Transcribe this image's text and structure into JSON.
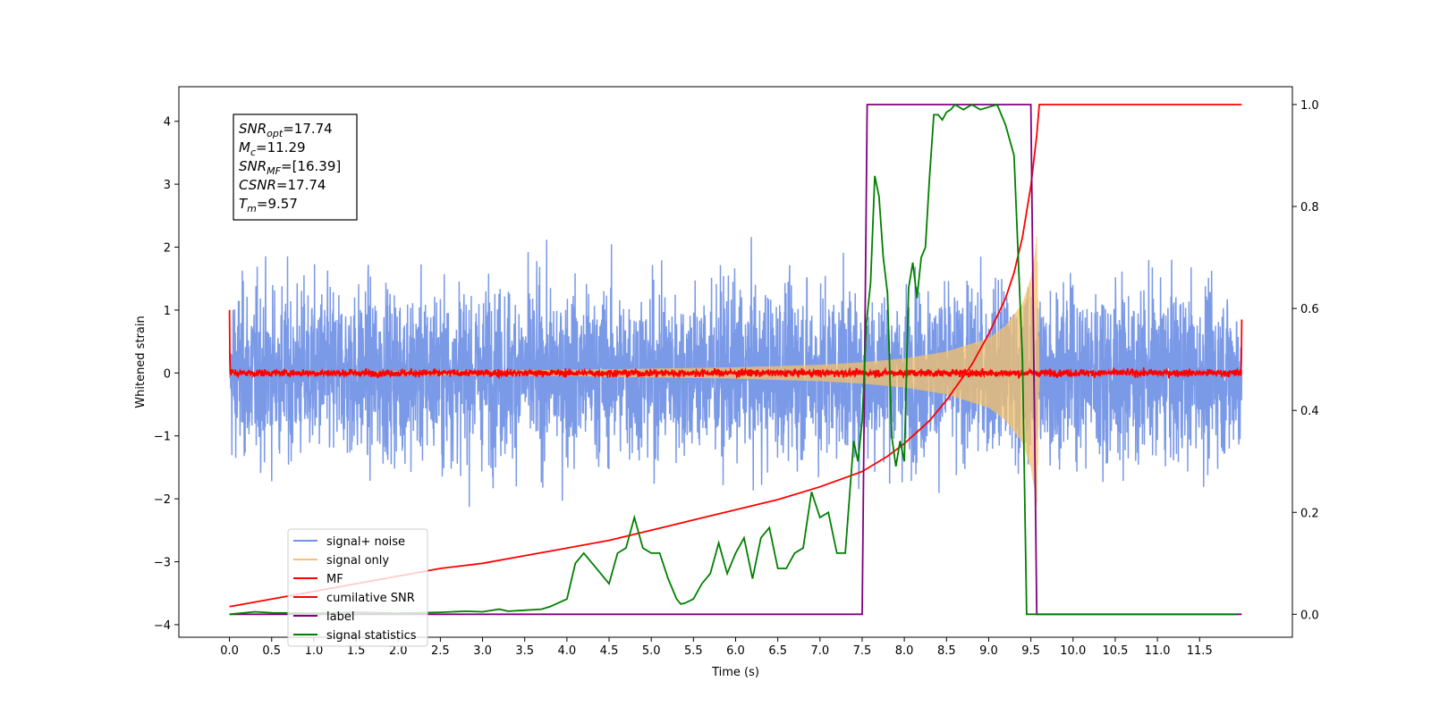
{
  "chart_data": {
    "type": "line",
    "xlabel": "Time (s)",
    "ylabel": "Whitened strain",
    "xlim": [
      -0.6,
      12.6
    ],
    "ylim": [
      -4.2,
      4.55
    ],
    "y2lim": [
      -0.045,
      1.035
    ],
    "xticks": [
      "0.0",
      "0.5",
      "1.0",
      "1.5",
      "2.0",
      "2.5",
      "3.0",
      "3.5",
      "4.0",
      "4.5",
      "5.0",
      "5.5",
      "6.0",
      "6.5",
      "7.0",
      "7.5",
      "8.0",
      "8.5",
      "9.0",
      "9.5",
      "10.0",
      "10.5",
      "11.0",
      "11.5"
    ],
    "yticks": [
      "4",
      "3",
      "2",
      "1",
      "0",
      "−1",
      "−2",
      "−3",
      "−4"
    ],
    "y2ticks": [
      "1.0",
      "0.8",
      "0.6",
      "0.4",
      "0.2",
      "0.0"
    ],
    "annotation": {
      "lines": [
        {
          "base": "SNR",
          "sub": "opt",
          "value": "=17.74"
        },
        {
          "base": "M",
          "sub": "c",
          "value": "=11.29"
        },
        {
          "base": "SNR",
          "sub": "MF",
          "value": "=[16.39]"
        },
        {
          "base": "CSNR",
          "sub": "",
          "value": "=17.74"
        },
        {
          "base": "T",
          "sub": "m",
          "value": "=9.57"
        }
      ]
    },
    "legend_position": "lower-left",
    "legend": [
      {
        "name": "signal+ noise",
        "color": "#7393e6"
      },
      {
        "name": "signal only",
        "color": "#f5c26b"
      },
      {
        "name": "MF",
        "color": "#ff0000"
      },
      {
        "name": "cumilative SNR",
        "color": "#ff0000"
      },
      {
        "name": "label",
        "color": "#800080"
      },
      {
        "name": "signal statistics",
        "color": "#008000"
      }
    ],
    "series": [
      {
        "name": "signal+ noise",
        "axis": "left",
        "color": "#7393e6",
        "description": "noise band between approx -2.5 and 2.5 spanning 0 to 12 s"
      },
      {
        "name": "signal only",
        "axis": "left",
        "color": "#f5c26b",
        "envelope": {
          "x": [
            0.0,
            2.0,
            4.0,
            6.0,
            7.0,
            7.5,
            8.0,
            8.5,
            9.0,
            9.2,
            9.4,
            9.5,
            9.55,
            9.57,
            9.6
          ],
          "amplitude": [
            0.02,
            0.03,
            0.05,
            0.09,
            0.13,
            0.17,
            0.23,
            0.34,
            0.55,
            0.75,
            1.1,
            1.5,
            1.9,
            2.2,
            0.0
          ]
        }
      },
      {
        "name": "MF",
        "axis": "left",
        "color": "#ff0000",
        "endpoints": [
          {
            "x": 0.0,
            "y": 1.0
          },
          {
            "x": 12.0,
            "y": 0.85
          }
        ],
        "baseline": 0.0
      },
      {
        "name": "cumilative SNR",
        "axis": "right",
        "color": "#ff0000",
        "x": [
          0.0,
          0.5,
          1.0,
          1.5,
          2.0,
          2.5,
          3.0,
          3.5,
          4.0,
          4.5,
          5.0,
          5.5,
          6.0,
          6.5,
          7.0,
          7.5,
          7.8,
          8.0,
          8.3,
          8.5,
          8.8,
          9.0,
          9.2,
          9.3,
          9.4,
          9.5,
          9.57,
          9.6,
          12.0
        ],
        "y": [
          0.015,
          0.03,
          0.045,
          0.06,
          0.075,
          0.09,
          0.1,
          0.115,
          0.13,
          0.145,
          0.165,
          0.185,
          0.205,
          0.225,
          0.25,
          0.28,
          0.31,
          0.335,
          0.38,
          0.42,
          0.49,
          0.55,
          0.62,
          0.67,
          0.74,
          0.84,
          0.94,
          1.0,
          1.0
        ]
      },
      {
        "name": "label",
        "axis": "right",
        "color": "#800080",
        "x": [
          0.0,
          7.5,
          7.56,
          9.5,
          9.57,
          12.0
        ],
        "y": [
          0.0,
          0.0,
          1.0,
          1.0,
          0.0,
          0.0
        ]
      },
      {
        "name": "signal statistics",
        "axis": "right",
        "color": "#008000",
        "x": [
          0.0,
          0.3,
          0.5,
          1.0,
          1.5,
          2.0,
          2.5,
          2.8,
          3.0,
          3.2,
          3.3,
          3.5,
          3.7,
          3.8,
          4.0,
          4.1,
          4.2,
          4.3,
          4.4,
          4.5,
          4.6,
          4.7,
          4.8,
          4.9,
          5.0,
          5.1,
          5.2,
          5.3,
          5.35,
          5.4,
          5.5,
          5.6,
          5.7,
          5.8,
          5.9,
          6.0,
          6.1,
          6.2,
          6.3,
          6.4,
          6.5,
          6.6,
          6.7,
          6.8,
          6.9,
          7.0,
          7.1,
          7.2,
          7.3,
          7.4,
          7.45,
          7.5,
          7.55,
          7.6,
          7.65,
          7.7,
          7.75,
          7.8,
          7.85,
          7.9,
          7.95,
          8.0,
          8.05,
          8.1,
          8.15,
          8.2,
          8.25,
          8.3,
          8.35,
          8.4,
          8.45,
          8.5,
          8.55,
          8.6,
          8.7,
          8.8,
          8.9,
          9.0,
          9.1,
          9.2,
          9.3,
          9.4,
          9.45,
          9.5,
          9.55,
          9.6,
          9.7,
          10.0,
          11.0,
          11.95
        ],
        "y": [
          0.0,
          0.005,
          0.003,
          0.002,
          0.004,
          0.002,
          0.004,
          0.006,
          0.005,
          0.01,
          0.006,
          0.008,
          0.01,
          0.015,
          0.03,
          0.1,
          0.12,
          0.1,
          0.08,
          0.06,
          0.12,
          0.13,
          0.19,
          0.13,
          0.12,
          0.12,
          0.07,
          0.03,
          0.02,
          0.022,
          0.03,
          0.06,
          0.08,
          0.14,
          0.08,
          0.12,
          0.15,
          0.07,
          0.15,
          0.17,
          0.09,
          0.09,
          0.12,
          0.13,
          0.24,
          0.19,
          0.2,
          0.12,
          0.12,
          0.34,
          0.3,
          0.38,
          0.57,
          0.65,
          0.86,
          0.82,
          0.7,
          0.63,
          0.35,
          0.29,
          0.34,
          0.3,
          0.64,
          0.69,
          0.62,
          0.7,
          0.72,
          0.86,
          0.98,
          0.98,
          0.97,
          0.985,
          0.99,
          1.0,
          0.99,
          1.0,
          0.99,
          0.995,
          1.0,
          0.96,
          0.9,
          0.5,
          0.0,
          0.0,
          0.0,
          0.0,
          0.0,
          0.0,
          0.0,
          0.0
        ]
      }
    ]
  }
}
